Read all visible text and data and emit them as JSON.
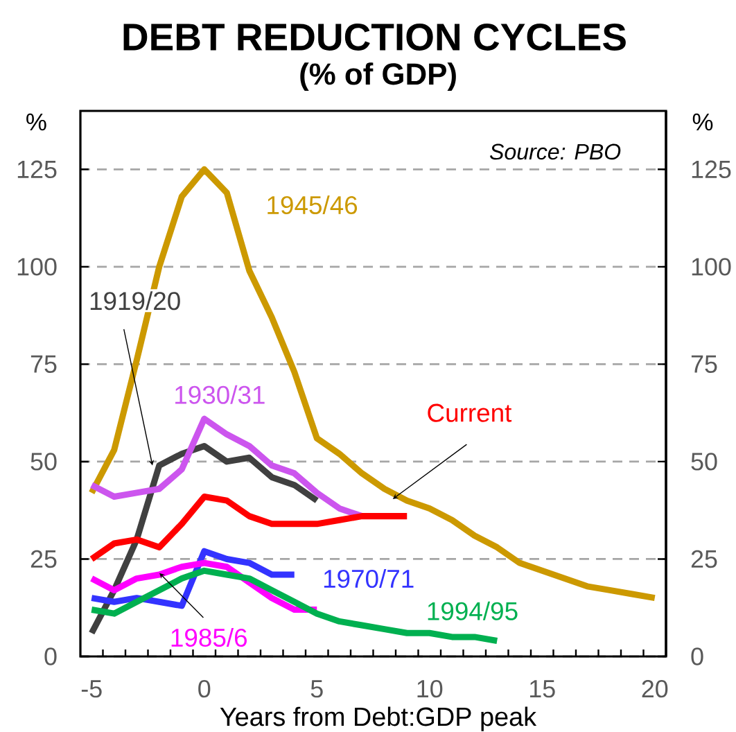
{
  "chart_data": {
    "type": "line",
    "title": "DEBT REDUCTION CYCLES",
    "subtitle": "(% of GDP)",
    "xlabel": "Years from Debt:GDP peak",
    "ylabel": "%",
    "y2label": "%",
    "annotations": [
      "*Source: PBO*"
    ],
    "xlim": [
      -5.5,
      20.5
    ],
    "xticks": [
      -5,
      {
        "value": -4.5,
        "label": null
      },
      {
        "value": -3.5,
        "label": null
      },
      {
        "value": -2.5,
        "label": null
      },
      {
        "value": -1.5,
        "label": null
      },
      {
        "value": -0.5,
        "label": null
      },
      0,
      {
        "value": 0.5,
        "label": null
      },
      {
        "value": 1.5,
        "label": null
      },
      {
        "value": 2.5,
        "label": null
      },
      {
        "value": 3.5,
        "label": null
      },
      {
        "value": 4.5,
        "label": null
      },
      5,
      {
        "value": 5.5,
        "label": null
      },
      {
        "value": 6.5,
        "label": null
      },
      {
        "value": 7.5,
        "label": null
      },
      {
        "value": 8.5,
        "label": null
      },
      {
        "value": 9.5,
        "label": null
      },
      10,
      {
        "value": 10.5,
        "label": null
      },
      {
        "value": 11.5,
        "label": null
      },
      {
        "value": 12.5,
        "label": null
      },
      {
        "value": 13.5,
        "label": null
      },
      {
        "value": 14.5,
        "label": null
      },
      15,
      {
        "value": 15.5,
        "label": null
      },
      {
        "value": 16.5,
        "label": null
      },
      {
        "value": 17.5,
        "label": null
      },
      {
        "value": 18.5,
        "label": null
      },
      {
        "value": 19.5,
        "label": null
      },
      20
    ],
    "ylim": [
      0,
      140
    ],
    "yticks": [
      0,
      25,
      50,
      75,
      100,
      125
    ],
    "y2lim": [
      0,
      140
    ],
    "y2ticks": [
      0,
      25,
      50,
      75,
      100,
      125
    ],
    "grid": "y",
    "line_style": "solid",
    "series": [
      {
        "name": "1945/46",
        "color": "#CC9900",
        "x": [
          -5,
          -4,
          -3,
          -2,
          -1,
          0,
          1,
          2,
          3,
          4,
          5,
          6,
          7,
          8,
          9,
          10,
          11,
          12,
          13,
          14,
          15,
          16,
          17,
          18,
          19,
          20
        ],
        "values": [
          42,
          53,
          76,
          100,
          118,
          125,
          119,
          99,
          87,
          73,
          56,
          52,
          47,
          43,
          40,
          38,
          35,
          31,
          28,
          24,
          22,
          20,
          18,
          17,
          16,
          15
        ]
      },
      {
        "name": "1919/20",
        "color": "#404040",
        "x": [
          -5,
          -4,
          -3,
          -2,
          -1,
          0,
          1,
          2,
          3,
          4,
          5
        ],
        "values": [
          6,
          17,
          30,
          49,
          52,
          54,
          50,
          51,
          46,
          44,
          40
        ]
      },
      {
        "name": "1930/31",
        "color": "#CC55EE",
        "x": [
          -5,
          -4,
          -3,
          -2,
          -1,
          0,
          1,
          2,
          3,
          4,
          5,
          6,
          7
        ],
        "values": [
          44,
          41,
          42,
          43,
          48,
          61,
          57,
          54,
          49,
          47,
          42,
          38,
          36
        ]
      },
      {
        "name": "Current",
        "color": "#FF0000",
        "x": [
          -5,
          -4,
          -3,
          -2,
          -1,
          0,
          1,
          2,
          3,
          4,
          5,
          6,
          7,
          8,
          9
        ],
        "values": [
          25,
          29,
          30,
          28,
          34,
          41,
          40,
          36,
          34,
          34,
          34,
          35,
          36,
          36,
          36
        ]
      },
      {
        "name": "1970/71",
        "color": "#3333FF",
        "x": [
          -5,
          -4,
          -3,
          -2,
          -1,
          0,
          1,
          2,
          3,
          4
        ],
        "values": [
          15,
          14,
          15,
          14,
          13,
          27,
          25,
          24,
          21,
          21
        ]
      },
      {
        "name": "1985/6",
        "color": "#FF00FF",
        "x": [
          -5,
          -4,
          -3,
          -2,
          -1,
          0,
          1,
          2,
          3,
          4,
          5
        ],
        "values": [
          20,
          17,
          20,
          21,
          23,
          24,
          23,
          19,
          15,
          12,
          12
        ]
      },
      {
        "name": "1994/95",
        "color": "#00B050",
        "x": [
          -5,
          -4,
          -3,
          -2,
          -1,
          0,
          1,
          2,
          3,
          4,
          5,
          6,
          7,
          8,
          9,
          10,
          11,
          12,
          13
        ],
        "values": [
          12,
          11,
          14,
          17,
          20,
          22,
          21,
          20,
          17,
          14,
          11,
          9,
          8,
          7,
          6,
          6,
          5,
          5,
          4
        ]
      }
    ]
  }
}
